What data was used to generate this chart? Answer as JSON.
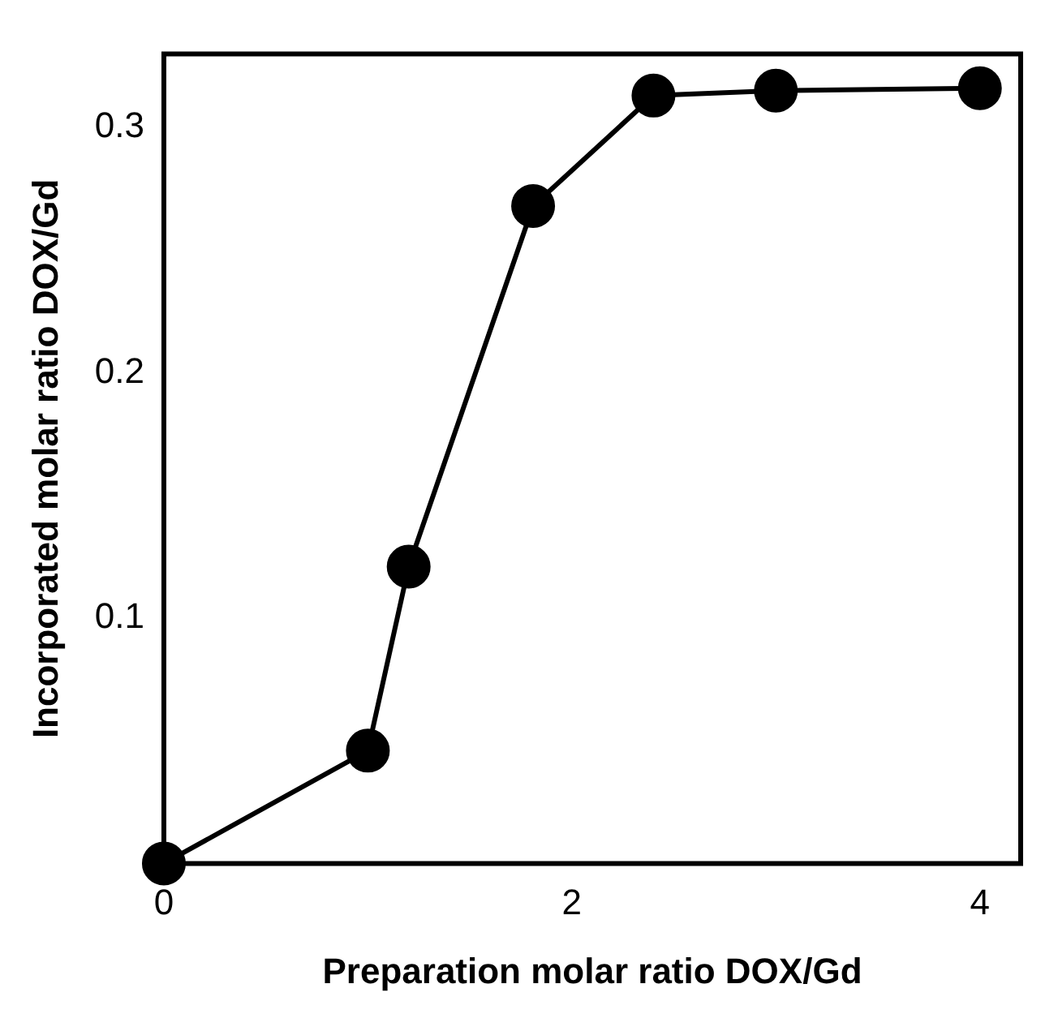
{
  "chart_data": {
    "type": "line",
    "xlabel": "Preparation molar ratio DOX/Gd",
    "ylabel": "Incorporated molar ratio DOX/Gd",
    "x": [
      0,
      1.0,
      1.2,
      1.81,
      2.4,
      3.0,
      4.0
    ],
    "series": [
      {
        "color": "#000000",
        "values": [
          0,
          0.046,
          0.121,
          0.268,
          0.313,
          0.315,
          0.316
        ]
      }
    ],
    "xlim": [
      0,
      4.2
    ],
    "xticks": [
      0,
      2,
      4
    ],
    "ylim": [
      0,
      0.33
    ],
    "yticks": [
      0.1,
      0.2,
      0.3
    ],
    "grid": false,
    "legend": false,
    "marker": "circle",
    "line_style": "solid"
  }
}
